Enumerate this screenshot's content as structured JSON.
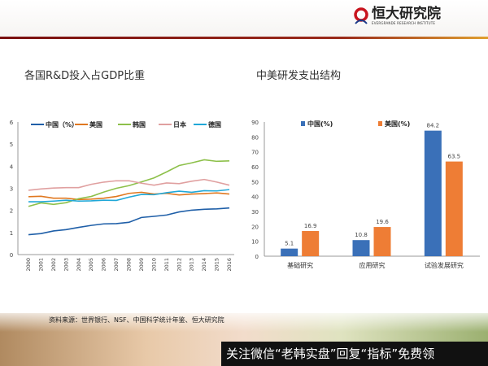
{
  "header": {
    "logo_name": "恒大研究院",
    "logo_sub": "EVERGRANDE RESEARCH INSTITUTE"
  },
  "titles": {
    "left": "各国R&D投入占GDP比重",
    "right": "中美研发支出结构"
  },
  "footer": {
    "source": "资料来源：世界银行、NSF、中国科学统计年鉴、恒大研究院",
    "watermark": "关注微信“老韩实盘”回复“指标”免费领"
  },
  "chart_data": [
    {
      "type": "line",
      "title": "各国R&D投入占GDP比重",
      "ylim": [
        0,
        6
      ],
      "yticks": [
        "0",
        "1",
        "2",
        "3",
        "4",
        "5",
        "6"
      ],
      "x": [
        "2000",
        "2001",
        "2002",
        "2003",
        "2004",
        "2005",
        "2006",
        "2007",
        "2008",
        "2009",
        "2010",
        "2011",
        "2012",
        "2013",
        "2014",
        "2015",
        "2016"
      ],
      "legend": "top",
      "series": [
        {
          "name": "中国（%）",
          "color": "#1f5fa8",
          "values": [
            0.9,
            0.95,
            1.07,
            1.13,
            1.23,
            1.32,
            1.39,
            1.4,
            1.46,
            1.68,
            1.73,
            1.79,
            1.93,
            2.01,
            2.05,
            2.07,
            2.11
          ]
        },
        {
          "name": "美国",
          "color": "#e07820",
          "values": [
            2.62,
            2.64,
            2.55,
            2.55,
            2.49,
            2.51,
            2.55,
            2.63,
            2.77,
            2.82,
            2.74,
            2.77,
            2.7,
            2.74,
            2.76,
            2.79,
            2.74
          ]
        },
        {
          "name": "韩国",
          "color": "#8dc04a",
          "values": [
            2.18,
            2.34,
            2.27,
            2.35,
            2.53,
            2.63,
            2.83,
            3.0,
            3.12,
            3.29,
            3.47,
            3.74,
            4.03,
            4.15,
            4.29,
            4.22,
            4.24
          ]
        },
        {
          "name": "日本",
          "color": "#e0a0a0",
          "values": [
            2.91,
            2.97,
            3.01,
            3.03,
            3.03,
            3.18,
            3.28,
            3.34,
            3.34,
            3.23,
            3.14,
            3.24,
            3.21,
            3.32,
            3.4,
            3.28,
            3.14
          ]
        },
        {
          "name": "德国",
          "color": "#20a8d8",
          "values": [
            2.39,
            2.39,
            2.42,
            2.46,
            2.42,
            2.43,
            2.46,
            2.45,
            2.6,
            2.72,
            2.71,
            2.8,
            2.87,
            2.82,
            2.89,
            2.88,
            2.94
          ]
        }
      ]
    },
    {
      "type": "bar",
      "title": "中美研发支出结构",
      "ylim": [
        0,
        90
      ],
      "yticks": [
        "0",
        "10",
        "20",
        "30",
        "40",
        "50",
        "60",
        "70",
        "80",
        "90"
      ],
      "categories": [
        "基础研究",
        "应用研究",
        "试验发展研究"
      ],
      "legend": "top",
      "series": [
        {
          "name": "中国(%)",
          "color": "#3a70b8",
          "values": [
            5.1,
            10.8,
            84.2
          ],
          "labels": [
            "5.1",
            "10.8",
            "84.2"
          ]
        },
        {
          "name": "美国(%)",
          "color": "#ee7d35",
          "values": [
            16.9,
            19.6,
            63.5
          ],
          "labels": [
            "16.9",
            "19.6",
            "63.5"
          ]
        }
      ]
    }
  ]
}
